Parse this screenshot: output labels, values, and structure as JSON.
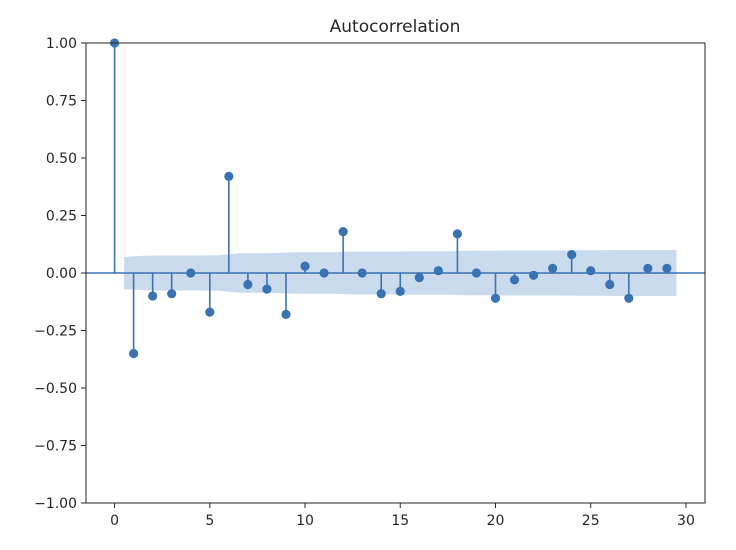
{
  "chart_data": {
    "type": "stem",
    "title": "Autocorrelation",
    "xlabel": "",
    "ylabel": "",
    "xlim": [
      -1.5,
      31
    ],
    "ylim": [
      -1.0,
      1.0
    ],
    "x_ticks": [
      0,
      5,
      10,
      15,
      20,
      25,
      30
    ],
    "y_ticks": [
      1.0,
      0.75,
      0.5,
      0.25,
      0.0,
      -0.25,
      -0.5,
      -0.75,
      -1.0
    ],
    "y_tick_labels": [
      "1.00",
      "0.75",
      "0.50",
      "0.25",
      "0.00",
      "−0.25",
      "−0.50",
      "−0.75",
      "−1.00"
    ],
    "lags": [
      0,
      1,
      2,
      3,
      4,
      5,
      6,
      7,
      8,
      9,
      10,
      11,
      12,
      13,
      14,
      15,
      16,
      17,
      18,
      19,
      20,
      21,
      22,
      23,
      24,
      25,
      26,
      27,
      28,
      29
    ],
    "values": [
      1.0,
      -0.35,
      -0.1,
      -0.09,
      0.0,
      -0.17,
      0.42,
      -0.05,
      -0.07,
      -0.18,
      0.03,
      0.0,
      0.18,
      0.0,
      -0.09,
      -0.08,
      -0.02,
      0.01,
      0.17,
      0.0,
      -0.11,
      -0.03,
      -0.01,
      0.02,
      0.08,
      0.01,
      -0.05,
      -0.11,
      0.02,
      0.02
    ],
    "confidence_band": {
      "x": [
        0.5,
        1.5,
        2.5,
        3.5,
        4.5,
        5.5,
        6.5,
        7.5,
        8.5,
        9.5,
        10.5,
        11.5,
        12.5,
        13.5,
        14.5,
        15.5,
        16.5,
        17.5,
        18.5,
        19.5,
        20.5,
        21.5,
        22.5,
        23.5,
        24.5,
        25.5,
        26.5,
        27.5,
        28.5,
        29.5
      ],
      "upper": [
        0.07,
        0.075,
        0.076,
        0.076,
        0.076,
        0.077,
        0.086,
        0.086,
        0.087,
        0.09,
        0.09,
        0.09,
        0.093,
        0.093,
        0.093,
        0.094,
        0.094,
        0.094,
        0.097,
        0.097,
        0.098,
        0.098,
        0.098,
        0.098,
        0.099,
        0.099,
        0.1,
        0.1,
        0.1,
        0.1
      ],
      "lower": [
        -0.07,
        -0.075,
        -0.076,
        -0.076,
        -0.076,
        -0.077,
        -0.086,
        -0.086,
        -0.087,
        -0.09,
        -0.09,
        -0.09,
        -0.093,
        -0.093,
        -0.093,
        -0.094,
        -0.094,
        -0.094,
        -0.097,
        -0.097,
        -0.098,
        -0.098,
        -0.098,
        -0.098,
        -0.099,
        -0.099,
        -0.1,
        -0.1,
        -0.1,
        -0.1
      ]
    },
    "grid": false,
    "legend": "none",
    "colors": {
      "stem": "#3a73b3",
      "marker": "#3a73b3",
      "band": "#b7cfe6",
      "zero_line": "#3a73b3",
      "axis": "#262626"
    }
  }
}
